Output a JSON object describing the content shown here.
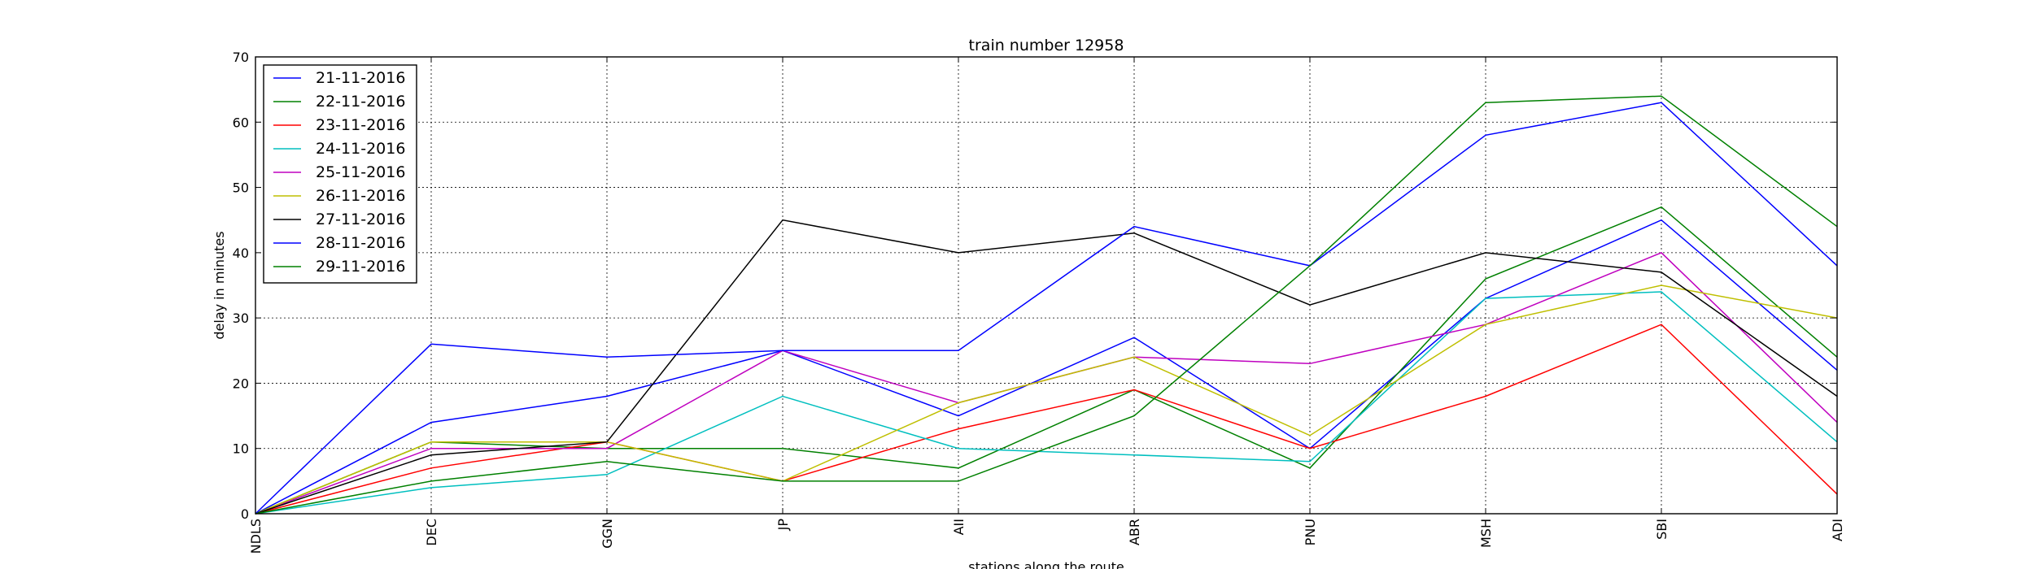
{
  "chart_data": {
    "type": "line",
    "title": "train number 12958",
    "xlabel": "stations along the route",
    "ylabel": "delay in minutes",
    "categories": [
      "NDLS",
      "DEC",
      "GGN",
      "JP",
      "AII",
      "ABR",
      "PNU",
      "MSH",
      "SBI",
      "ADI"
    ],
    "ylim": [
      0,
      70
    ],
    "yticks": [
      0,
      10,
      20,
      30,
      40,
      50,
      60,
      70
    ],
    "grid": true,
    "legend_position": "top-left",
    "series": [
      {
        "name": "21-11-2016",
        "color": "#0000ff",
        "values": [
          0,
          14,
          18,
          25,
          15,
          27,
          10,
          33,
          45,
          22
        ]
      },
      {
        "name": "22-11-2016",
        "color": "#008000",
        "values": [
          0,
          11,
          10,
          10,
          7,
          19,
          7,
          36,
          47,
          24
        ]
      },
      {
        "name": "23-11-2016",
        "color": "#ff0000",
        "values": [
          0,
          7,
          11,
          5,
          13,
          19,
          10,
          18,
          29,
          3
        ]
      },
      {
        "name": "24-11-2016",
        "color": "#00bfbf",
        "values": [
          0,
          4,
          6,
          18,
          10,
          9,
          8,
          33,
          34,
          11
        ]
      },
      {
        "name": "25-11-2016",
        "color": "#bf00bf",
        "values": [
          0,
          10,
          10,
          25,
          17,
          24,
          23,
          29,
          40,
          14
        ]
      },
      {
        "name": "26-11-2016",
        "color": "#bfbf00",
        "values": [
          0,
          11,
          11,
          5,
          17,
          24,
          12,
          29,
          35,
          30
        ]
      },
      {
        "name": "27-11-2016",
        "color": "#000000",
        "values": [
          0,
          9,
          11,
          45,
          40,
          43,
          32,
          40,
          37,
          18
        ]
      },
      {
        "name": "28-11-2016",
        "color": "#0000ff",
        "values": [
          0,
          26,
          24,
          25,
          25,
          44,
          38,
          58,
          63,
          38
        ]
      },
      {
        "name": "29-11-2016",
        "color": "#008000",
        "values": [
          0,
          5,
          8,
          5,
          5,
          15,
          38,
          63,
          64,
          44
        ]
      }
    ]
  }
}
